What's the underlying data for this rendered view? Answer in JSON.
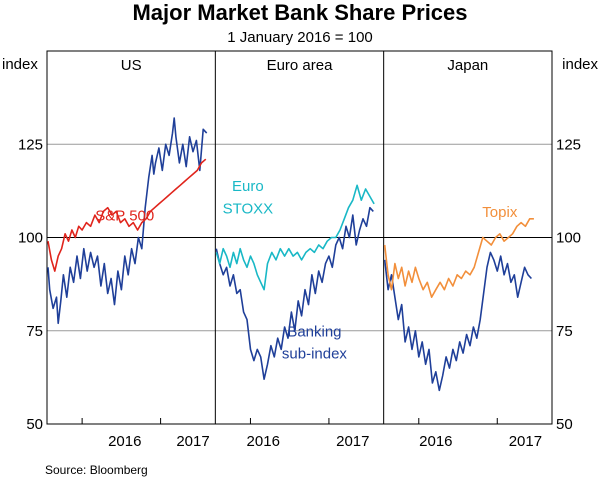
{
  "chart_data": {
    "type": "line",
    "title": "Major Market Bank Share Prices",
    "subtitle": "1 January 2016 = 100",
    "ylabel_left": "index",
    "ylabel_right": "index",
    "ylim": [
      50,
      150
    ],
    "yticks": [
      50,
      75,
      100,
      125
    ],
    "xlim": [
      2015.6,
      2017.55
    ],
    "source": "Source:   Bloomberg",
    "colors": {
      "banking": "#1f3f99",
      "sp500": "#e0241c",
      "stoxx": "#19b8c6",
      "topix": "#f28f3b",
      "grid": "#9a9a9a",
      "axis": "#000000"
    },
    "panels": [
      {
        "name": "US",
        "xticks": [
          {
            "label": "2016",
            "x": 2016.5
          },
          {
            "label": "2017",
            "x": 2017.3
          }
        ],
        "series": [
          {
            "name": "Banking sub-index",
            "color_key": "banking",
            "x": [
              2015.6,
              2015.62,
              2015.66,
              2015.7,
              2015.72,
              2015.75,
              2015.78,
              2015.82,
              2015.86,
              2015.9,
              2015.94,
              2015.98,
              2016.02,
              2016.06,
              2016.1,
              2016.14,
              2016.18,
              2016.22,
              2016.26,
              2016.3,
              2016.34,
              2016.38,
              2016.42,
              2016.46,
              2016.5,
              2016.54,
              2016.58,
              2016.62,
              2016.66,
              2016.7,
              2016.74,
              2016.78,
              2016.82,
              2016.84,
              2016.86,
              2016.9,
              2016.94,
              2016.98,
              2017.02,
              2017.06,
              2017.08,
              2017.1,
              2017.14,
              2017.18,
              2017.22,
              2017.26,
              2017.3,
              2017.34,
              2017.38,
              2017.42,
              2017.46
            ],
            "values": [
              92,
              86,
              81,
              84,
              77,
              83,
              90,
              84,
              92,
              88,
              95,
              89,
              97,
              91,
              96,
              92,
              95,
              87,
              93,
              85,
              89,
              82,
              91,
              86,
              95,
              90,
              97,
              93,
              100,
              97,
              108,
              116,
              122,
              117,
              120,
              124,
              118,
              125,
              122,
              128,
              132,
              127,
              120,
              125,
              119,
              127,
              123,
              126,
              118,
              129,
              128
            ]
          },
          {
            "name": "S&P 500",
            "color_key": "sp500",
            "x": [
              2015.6,
              2015.64,
              2015.68,
              2015.72,
              2015.76,
              2015.8,
              2015.84,
              2015.88,
              2015.92,
              2015.96,
              2016.0,
              2016.05,
              2016.1,
              2016.15,
              2016.2,
              2016.25,
              2016.3,
              2016.35,
              2016.4,
              2016.45,
              2016.5,
              2016.55,
              2016.6,
              2016.65,
              2016.7,
              2016.75,
              2016.8,
              2016.85,
              2016.9,
              2016.95,
              2017.0,
              2017.05,
              2017.1,
              2017.15,
              2017.2,
              2017.25,
              2017.3,
              2017.35,
              2017.4,
              2017.45
            ],
            "values": [
              99,
              94,
              91,
              95,
              97,
              101,
              99,
              102,
              100,
              103,
              102,
              104,
              103,
              106,
              104,
              107,
              108,
              106,
              107,
              104,
              105,
              103,
              104,
              102,
              104,
              105,
              107,
              108,
              109,
              110,
              111,
              112,
              113,
              114,
              115,
              116,
              117,
              118,
              120,
              121
            ]
          }
        ],
        "annotations": [
          {
            "text": "S&P 500",
            "color_key": "sp500",
            "x": 2016.5,
            "y": 104.5
          }
        ]
      },
      {
        "name": "Euro area",
        "xticks": [
          {
            "label": "2016",
            "x": 2016.15
          },
          {
            "label": "2017",
            "x": 2017.2
          }
        ],
        "series": [
          {
            "name": "Banking sub-index",
            "color_key": "banking",
            "x": [
              2015.6,
              2015.64,
              2015.68,
              2015.72,
              2015.76,
              2015.8,
              2015.84,
              2015.88,
              2015.92,
              2015.96,
              2016.0,
              2016.04,
              2016.08,
              2016.12,
              2016.16,
              2016.2,
              2016.24,
              2016.28,
              2016.32,
              2016.36,
              2016.4,
              2016.44,
              2016.48,
              2016.52,
              2016.56,
              2016.6,
              2016.64,
              2016.68,
              2016.72,
              2016.76,
              2016.8,
              2016.84,
              2016.88,
              2016.92,
              2016.96,
              2017.0,
              2017.04,
              2017.08,
              2017.12,
              2017.16,
              2017.2,
              2017.24,
              2017.28,
              2017.32,
              2017.36,
              2017.4,
              2017.44
            ],
            "values": [
              97,
              93,
              90,
              92,
              87,
              90,
              85,
              86,
              80,
              78,
              70,
              67,
              70,
              68,
              62,
              66,
              71,
              68,
              73,
              70,
              76,
              73,
              80,
              75,
              83,
              79,
              86,
              82,
              90,
              85,
              91,
              88,
              93,
              95,
              92,
              98,
              100,
              97,
              103,
              100,
              106,
              98,
              102,
              105,
              103,
              108,
              107
            ]
          },
          {
            "name": "Euro STOXX",
            "color_key": "stoxx",
            "x": [
              2015.6,
              2015.64,
              2015.68,
              2015.72,
              2015.76,
              2015.8,
              2015.84,
              2015.88,
              2015.92,
              2015.96,
              2016.0,
              2016.04,
              2016.08,
              2016.12,
              2016.16,
              2016.2,
              2016.25,
              2016.3,
              2016.35,
              2016.4,
              2016.45,
              2016.5,
              2016.55,
              2016.6,
              2016.65,
              2016.7,
              2016.75,
              2016.8,
              2016.85,
              2016.9,
              2016.95,
              2017.0,
              2017.05,
              2017.1,
              2017.15,
              2017.2,
              2017.25,
              2017.3,
              2017.35,
              2017.4,
              2017.45
            ],
            "values": [
              96,
              93,
              97,
              95,
              92,
              96,
              93,
              97,
              94,
              92,
              95,
              93,
              90,
              88,
              86,
              93,
              96,
              94,
              97,
              95,
              97,
              95,
              96,
              94,
              96,
              97,
              96,
              98,
              97,
              99,
              100,
              100,
              102,
              105,
              108,
              110,
              114,
              110,
              113,
              111,
              109
            ]
          }
        ],
        "annotations": [
          {
            "text": "Euro",
            "color_key": "stoxx",
            "x": 2015.97,
            "y": 112.5
          },
          {
            "text": "STOXX",
            "color_key": "stoxx",
            "x": 2015.97,
            "y": 106.5
          },
          {
            "text": "Banking",
            "color_key": "banking",
            "x": 2016.75,
            "y": 73.5
          },
          {
            "text": "sub-index",
            "color_key": "banking",
            "x": 2016.75,
            "y": 67.5
          }
        ]
      },
      {
        "name": "Japan",
        "xticks": [
          {
            "label": "2016",
            "x": 2016.2
          },
          {
            "label": "2017",
            "x": 2017.25
          }
        ],
        "series": [
          {
            "name": "Banking sub-index",
            "color_key": "banking",
            "x": [
              2015.6,
              2015.64,
              2015.68,
              2015.72,
              2015.76,
              2015.8,
              2015.84,
              2015.88,
              2015.92,
              2015.96,
              2016.0,
              2016.04,
              2016.08,
              2016.12,
              2016.16,
              2016.2,
              2016.24,
              2016.28,
              2016.32,
              2016.36,
              2016.4,
              2016.44,
              2016.48,
              2016.52,
              2016.56,
              2016.6,
              2016.64,
              2016.68,
              2016.72,
              2016.76,
              2016.8,
              2016.84,
              2016.88,
              2016.92,
              2016.96,
              2017.0,
              2017.04,
              2017.08,
              2017.12,
              2017.16,
              2017.2,
              2017.24,
              2017.28,
              2017.32
            ],
            "values": [
              94,
              86,
              90,
              84,
              78,
              82,
              72,
              76,
              70,
              75,
              68,
              72,
              66,
              70,
              61,
              64,
              59,
              63,
              68,
              65,
              70,
              67,
              72,
              69,
              74,
              71,
              76,
              73,
              78,
              85,
              92,
              96,
              94,
              91,
              95,
              90,
              93,
              88,
              90,
              84,
              88,
              92,
              90,
              89
            ]
          },
          {
            "name": "Topix",
            "color_key": "topix",
            "x": [
              2015.6,
              2015.64,
              2015.68,
              2015.72,
              2015.76,
              2015.8,
              2015.84,
              2015.88,
              2015.92,
              2015.96,
              2016.0,
              2016.05,
              2016.1,
              2016.15,
              2016.2,
              2016.25,
              2016.3,
              2016.35,
              2016.4,
              2016.45,
              2016.5,
              2016.55,
              2016.6,
              2016.65,
              2016.7,
              2016.75,
              2016.8,
              2016.85,
              2016.9,
              2016.95,
              2017.0,
              2017.05,
              2017.1,
              2017.15,
              2017.2,
              2017.25,
              2017.3,
              2017.35
            ],
            "values": [
              98,
              90,
              86,
              93,
              89,
              92,
              87,
              91,
              88,
              92,
              89,
              86,
              88,
              84,
              86,
              88,
              86,
              89,
              87,
              90,
              89,
              91,
              90,
              92,
              96,
              100,
              99,
              98,
              100,
              101,
              99,
              100,
              101,
              103,
              104,
              103,
              105,
              105
            ]
          }
        ],
        "annotations": [
          {
            "text": "Topix",
            "color_key": "topix",
            "x": 2016.95,
            "y": 105.5
          }
        ]
      }
    ]
  }
}
